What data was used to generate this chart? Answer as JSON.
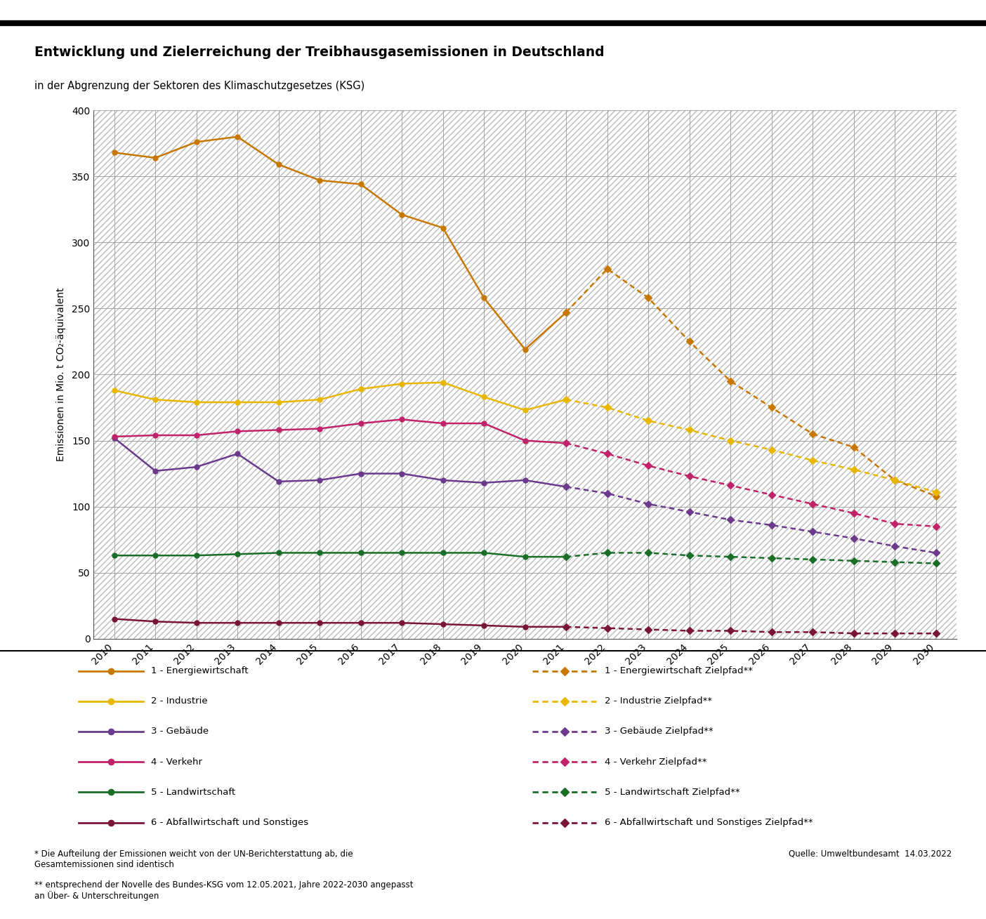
{
  "title": "Entwicklung und Zielerreichung der Treibhausgasemissionen in Deutschland",
  "subtitle": "in der Abgrenzung der Sektoren des Klimaschutzgesetzes (KSG)",
  "ylabel": "Emissionen in Mio. t CO₂-äquivalent",
  "source_text": "Quelle: Umweltbundesamt  14.03.2022",
  "footnote1": "* Die Aufteilung der Emissionen weicht von der UN-Berichterstattung ab, die\nGesamtemissionen sind identisch",
  "footnote2": "** entsprechend der Novelle des Bundes-KSG vom 12.05.2021, Jahre 2022-2030 angepasst\nan Über- & Unterschreitungen",
  "years_actual": [
    2010,
    2011,
    2012,
    2013,
    2014,
    2015,
    2016,
    2017,
    2018,
    2019,
    2020,
    2021
  ],
  "years_target": [
    2021,
    2022,
    2023,
    2024,
    2025,
    2026,
    2027,
    2028,
    2029,
    2030
  ],
  "energie_actual": [
    368,
    364,
    376,
    380,
    359,
    347,
    344,
    321,
    311,
    258,
    219,
    247
  ],
  "industrie_actual": [
    188,
    181,
    179,
    179,
    179,
    181,
    189,
    193,
    194,
    183,
    173,
    181
  ],
  "gebaeude_actual": [
    152,
    127,
    130,
    140,
    119,
    120,
    125,
    125,
    120,
    118,
    120,
    115
  ],
  "verkehr_actual": [
    153,
    154,
    154,
    157,
    158,
    159,
    163,
    166,
    163,
    163,
    150,
    148
  ],
  "landwirtschaft_actual": [
    63,
    63,
    63,
    64,
    65,
    65,
    65,
    65,
    65,
    65,
    62,
    62
  ],
  "abfall_actual": [
    15,
    13,
    12,
    12,
    12,
    12,
    12,
    12,
    11,
    10,
    9,
    9
  ],
  "energie_target": [
    247,
    280,
    258,
    225,
    195,
    175,
    155,
    145,
    120,
    108
  ],
  "industrie_target": [
    181,
    175,
    165,
    158,
    150,
    143,
    135,
    128,
    120,
    111
  ],
  "gebaeude_target": [
    115,
    110,
    102,
    96,
    90,
    86,
    81,
    76,
    70,
    65
  ],
  "verkehr_target": [
    148,
    140,
    131,
    123,
    116,
    109,
    102,
    95,
    87,
    85
  ],
  "landwirtschaft_target": [
    62,
    65,
    65,
    63,
    62,
    61,
    60,
    59,
    58,
    57
  ],
  "abfall_target": [
    9,
    8,
    7,
    6,
    6,
    5,
    5,
    4,
    4,
    4
  ],
  "color_energie": "#C87800",
  "color_industrie": "#E8B800",
  "color_gebaeude": "#6B3A8C",
  "color_verkehr": "#C0236A",
  "color_landwirtschaft": "#1A6E28",
  "color_abfall": "#7A1535",
  "ylim": [
    0,
    400
  ],
  "yticks": [
    0,
    50,
    100,
    150,
    200,
    250,
    300,
    350,
    400
  ],
  "legend_left": [
    "1 - Energiewirtschaft",
    "2 - Industrie",
    "3 - Gebäude",
    "4 - Verkehr",
    "5 - Landwirtschaft",
    "6 - Abfallwirtschaft und Sonstiges"
  ],
  "legend_right": [
    "1 - Energiewirtschaft Zielpfad**",
    "2 - Industrie Zielpfad**",
    "3 - Gebäude Zielpfad**",
    "4 - Verkehr Zielpfad**",
    "5 - Landwirtschaft Zielpfad**",
    "6 - Abfallwirtschaft und Sonstiges Zielpfad**"
  ]
}
